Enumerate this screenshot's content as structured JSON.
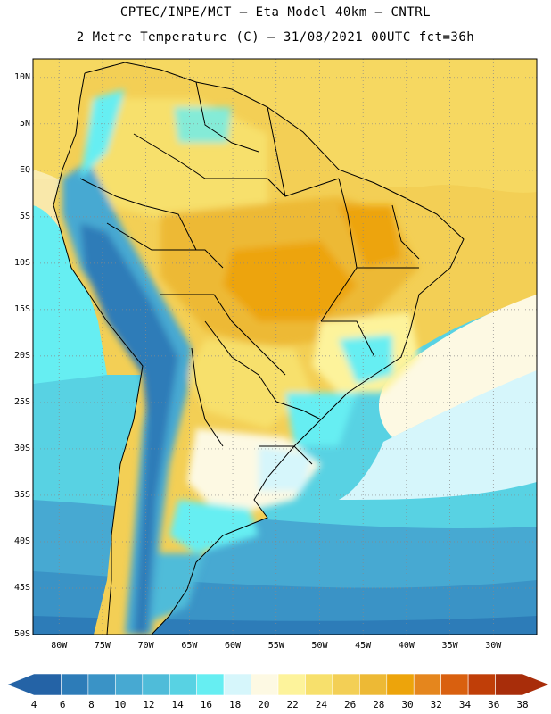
{
  "header": {
    "line1": "CPTEC/INPE/MCT –  Eta Model 40km – CNTRL",
    "line2": "2 Metre Temperature (C) – 31/08/2021 00UTC fct=36h"
  },
  "axes": {
    "lat_labels": [
      "10N",
      "5N",
      "EQ",
      "5S",
      "10S",
      "15S",
      "20S",
      "25S",
      "30S",
      "35S",
      "40S",
      "45S",
      "50S"
    ],
    "lon_labels": [
      "80W",
      "75W",
      "70W",
      "65W",
      "60W",
      "55W",
      "50W",
      "45W",
      "40W",
      "35W",
      "30W"
    ]
  },
  "colorbar": {
    "labels": [
      "4",
      "6",
      "8",
      "10",
      "12",
      "14",
      "16",
      "18",
      "20",
      "22",
      "24",
      "26",
      "28",
      "30",
      "32",
      "34",
      "36",
      "38"
    ],
    "colors": [
      "#2463a6",
      "#2d7cb8",
      "#3a93c6",
      "#47a9d2",
      "#4fbcd9",
      "#58d2e3",
      "#66eef2",
      "#d6f6fb",
      "#fdf9e3",
      "#fdf39b",
      "#f7e06c",
      "#f3cf55",
      "#edb935",
      "#eda40b",
      "#e5861d",
      "#d9600f",
      "#c03e08",
      "#a82d0a"
    ]
  },
  "map_data": {
    "variable": "2 Metre Temperature",
    "units": "C",
    "lon_range": [
      -83,
      -25
    ],
    "lat_range": [
      -50,
      12
    ],
    "regions": [
      {
        "name": "ocean-south-cold",
        "color": "#2d7cb8"
      },
      {
        "name": "ocean-mid",
        "color": "#47a9d2"
      },
      {
        "name": "ocean-warm",
        "color": "#66eef2"
      },
      {
        "name": "ocean-tropical",
        "color": "#f3cf55"
      },
      {
        "name": "amazon-interior",
        "color": "#edb935"
      },
      {
        "name": "central-brazil-hot",
        "color": "#eda40b"
      },
      {
        "name": "andes-cold",
        "color": "#2463a6"
      },
      {
        "name": "pampas-cool",
        "color": "#d6f6fb"
      }
    ]
  }
}
